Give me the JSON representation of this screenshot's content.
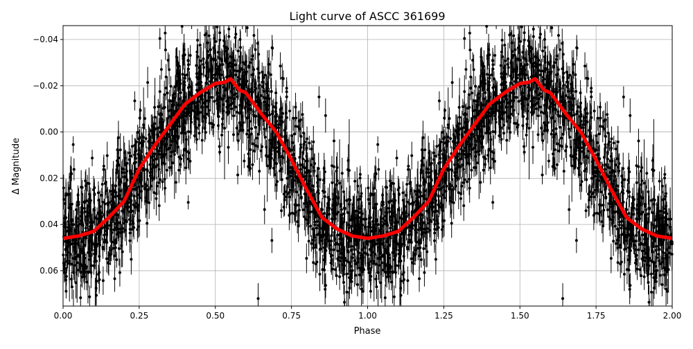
{
  "chart_data": {
    "type": "scatter",
    "title": "Light curve of ASCC 361699",
    "xlabel": "Phase",
    "ylabel": "Δ Magnitude",
    "xlim": [
      0,
      2
    ],
    "ylim": [
      0.0753,
      -0.046
    ],
    "y_inverted": true,
    "grid": true,
    "x_ticks": [
      0,
      0.25,
      0.5,
      0.75,
      1.0,
      1.25,
      1.5,
      1.75,
      2.0
    ],
    "x_tick_labels": [
      "0.00",
      "0.25",
      "0.50",
      "0.75",
      "1.00",
      "1.25",
      "1.50",
      "1.75",
      "2.00"
    ],
    "y_ticks": [
      -0.04,
      -0.02,
      0.0,
      0.02,
      0.04,
      0.06
    ],
    "y_tick_labels": [
      "−0.04",
      "−0.02",
      "0.00",
      "0.02",
      "0.04",
      "0.06"
    ],
    "colors": {
      "points": "#000000",
      "binned_curve": "#ff0000",
      "grid": "#b0b0b0"
    },
    "series": [
      {
        "style": "black points with error bars, repeated over two phase cycles",
        "scatter_std": 0.012,
        "typical_error": 0.005
      },
      {
        "style": "red thick binned line, repeated over two phase cycles",
        "phase": [
          0.0,
          0.05,
          0.1,
          0.15,
          0.2,
          0.25,
          0.3,
          0.35,
          0.4,
          0.45,
          0.5,
          0.53,
          0.55,
          0.58,
          0.6,
          0.65,
          0.7,
          0.75,
          0.8,
          0.85,
          0.9,
          0.95,
          1.0
        ],
        "magnitude": [
          0.046,
          0.045,
          0.043,
          0.037,
          0.03,
          0.016,
          0.006,
          -0.003,
          -0.012,
          -0.017,
          -0.021,
          -0.0215,
          -0.023,
          -0.018,
          -0.017,
          -0.008,
          0.0,
          0.012,
          0.025,
          0.037,
          0.042,
          0.045,
          0.046
        ]
      }
    ]
  }
}
